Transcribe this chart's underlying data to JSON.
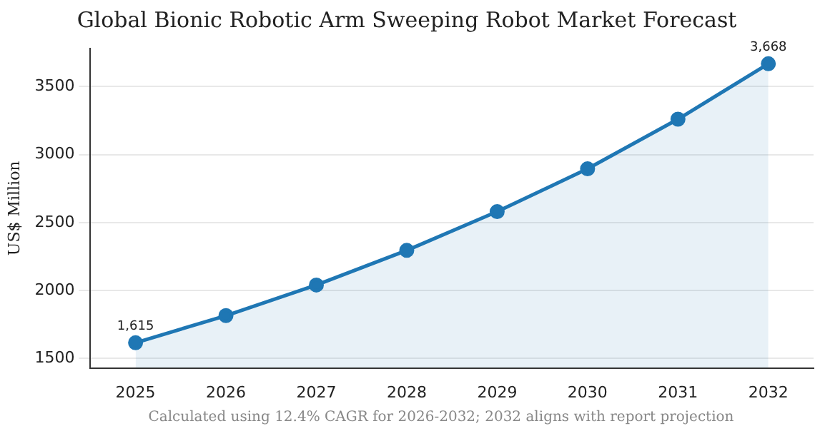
{
  "chart_data": {
    "type": "area",
    "title": "Global Bionic Robotic Arm Sweeping Robot Market Forecast",
    "ylabel": "US$ Million",
    "categories": [
      "2025",
      "2026",
      "2027",
      "2028",
      "2029",
      "2030",
      "2031",
      "2032"
    ],
    "series": [
      {
        "color": "#1f77b4",
        "values": [
          1615,
          1815,
          2040,
          2295,
          2580,
          2895,
          3260,
          3668
        ],
        "value_labels": [
          "1,615",
          null,
          null,
          null,
          null,
          null,
          null,
          "3,668"
        ]
      }
    ],
    "ylim": [
      1430,
      3780
    ],
    "yticks": [
      1500,
      2000,
      2500,
      3000,
      3500
    ],
    "grid": "y",
    "marker": "circle",
    "line_style": "solid",
    "annotations": [
      "Calculated using 12.4% CAGR for 2026-2032; 2032 aligns with report projection"
    ]
  }
}
